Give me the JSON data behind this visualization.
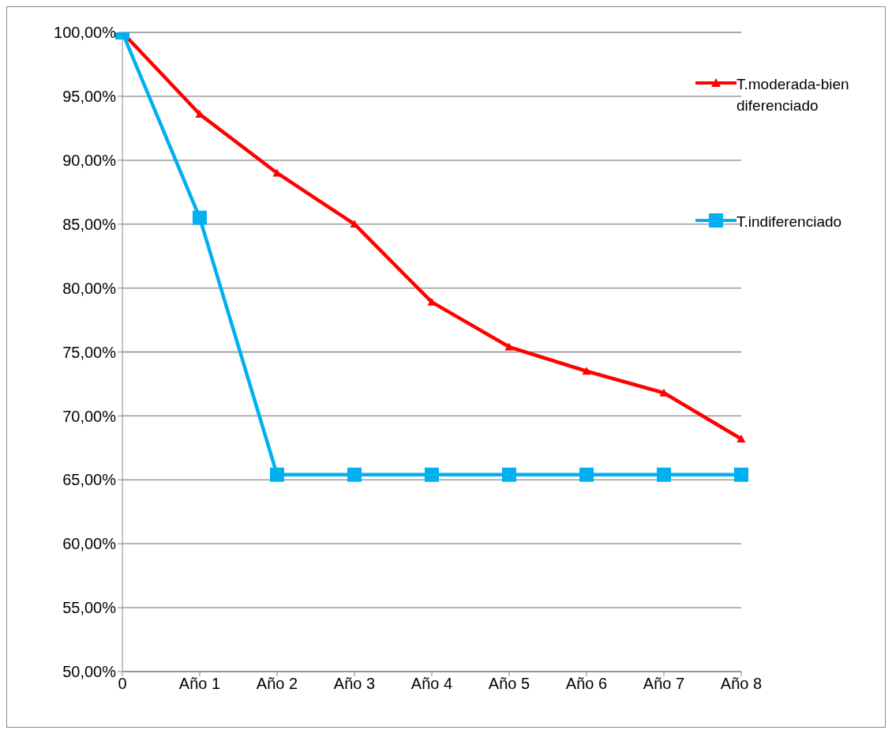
{
  "chart_data": {
    "type": "line",
    "categories": [
      "0",
      "Año 1",
      "Año 2",
      "Año 3",
      "Año 4",
      "Año 5",
      "Año 6",
      "Año 7",
      "Año 8"
    ],
    "series": [
      {
        "name": "T.moderada-bien diferenciado",
        "color": "#ff0000",
        "marker": "triangle",
        "values": [
          100,
          93.6,
          89.0,
          85.0,
          78.9,
          75.4,
          73.5,
          71.8,
          68.2
        ]
      },
      {
        "name": "T.indiferenciado",
        "color": "#00b0f0",
        "marker": "square",
        "values": [
          100,
          85.5,
          65.4,
          65.4,
          65.4,
          65.4,
          65.4,
          65.4,
          65.4
        ]
      }
    ],
    "ylim": [
      50,
      100
    ],
    "yticks": [
      {
        "value": 50,
        "label": "50,00%"
      },
      {
        "value": 55,
        "label": "55,00%"
      },
      {
        "value": 60,
        "label": "60,00%"
      },
      {
        "value": 65,
        "label": "65,00%"
      },
      {
        "value": 70,
        "label": "70,00%"
      },
      {
        "value": 75,
        "label": "75,00%"
      },
      {
        "value": 80,
        "label": "80,00%"
      },
      {
        "value": 85,
        "label": "85,00%"
      },
      {
        "value": 90,
        "label": "90,00%"
      },
      {
        "value": 95,
        "label": "95,00%"
      },
      {
        "value": 100,
        "label": "100,00%"
      }
    ],
    "grid": "y",
    "legend": "right"
  }
}
